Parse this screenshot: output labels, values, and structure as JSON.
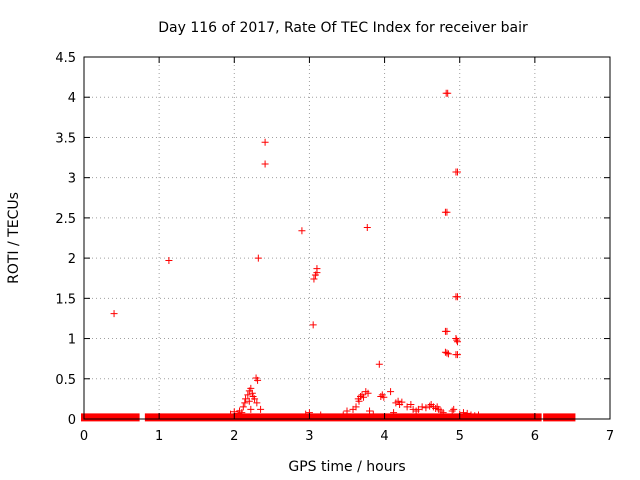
{
  "chart_data": {
    "type": "scatter",
    "title": "Day 116 of 2017, Rate Of TEC Index for receiver bair",
    "xlabel": "GPS time / hours",
    "ylabel": "ROTI / TECUs",
    "xlim": [
      0,
      7
    ],
    "ylim": [
      0,
      4.5
    ],
    "xticks": [
      0,
      1,
      2,
      3,
      4,
      5,
      6,
      7
    ],
    "yticks": [
      0,
      0.5,
      1,
      1.5,
      2,
      2.5,
      3,
      3.5,
      4,
      4.5
    ],
    "ytick_labels": [
      "0",
      "0.5",
      "1",
      "1.5",
      "2",
      "2.5",
      "3",
      "3.5",
      "4",
      "4.5"
    ],
    "grid": true,
    "marker": "plus",
    "color": "#ff0000",
    "baseline_segments": [
      {
        "x_start": 0.0,
        "x_end": 0.7,
        "y": 0.02
      },
      {
        "x_start": 0.85,
        "x_end": 6.05,
        "y": 0.02
      },
      {
        "x_start": 6.15,
        "x_end": 6.5,
        "y": 0.02
      }
    ],
    "points": [
      [
        0.4,
        1.31
      ],
      [
        1.13,
        1.97
      ],
      [
        2.41,
        3.44
      ],
      [
        2.41,
        3.17
      ],
      [
        2.32,
        2.0
      ],
      [
        2.9,
        2.34
      ],
      [
        3.77,
        2.38
      ],
      [
        3.1,
        1.87
      ],
      [
        3.1,
        1.82
      ],
      [
        3.08,
        1.79
      ],
      [
        3.06,
        1.74
      ],
      [
        3.05,
        1.17
      ],
      [
        3.93,
        0.68
      ],
      [
        4.08,
        0.34
      ],
      [
        4.82,
        4.05
      ],
      [
        4.84,
        4.05
      ],
      [
        4.95,
        3.07
      ],
      [
        4.97,
        3.07
      ],
      [
        4.81,
        2.57
      ],
      [
        4.83,
        2.57
      ],
      [
        4.95,
        1.52
      ],
      [
        4.97,
        1.52
      ],
      [
        4.81,
        1.09
      ],
      [
        4.83,
        1.09
      ],
      [
        4.95,
        1.0
      ],
      [
        4.96,
        0.98
      ],
      [
        4.97,
        0.96
      ],
      [
        4.81,
        0.83
      ],
      [
        4.83,
        0.82
      ],
      [
        4.85,
        0.81
      ],
      [
        4.95,
        0.8
      ],
      [
        4.97,
        0.8
      ],
      [
        2.29,
        0.51
      ],
      [
        2.31,
        0.48
      ],
      [
        2.2,
        0.35
      ],
      [
        2.22,
        0.38
      ],
      [
        2.24,
        0.32
      ],
      [
        2.18,
        0.3
      ],
      [
        2.25,
        0.28
      ],
      [
        2.15,
        0.25
      ],
      [
        2.27,
        0.25
      ],
      [
        2.2,
        0.22
      ],
      [
        2.14,
        0.2
      ],
      [
        2.3,
        0.2
      ],
      [
        2.12,
        0.15
      ],
      [
        2.22,
        0.12
      ],
      [
        2.07,
        0.1
      ],
      [
        2.1,
        0.08
      ],
      [
        2.35,
        0.12
      ],
      [
        1.95,
        0.06
      ],
      [
        2.0,
        0.09
      ],
      [
        2.05,
        0.07
      ],
      [
        2.95,
        0.06
      ],
      [
        3.0,
        0.08
      ],
      [
        3.15,
        0.05
      ],
      [
        3.45,
        0.05
      ],
      [
        3.5,
        0.1
      ],
      [
        3.58,
        0.12
      ],
      [
        3.62,
        0.15
      ],
      [
        3.65,
        0.25
      ],
      [
        3.68,
        0.28
      ],
      [
        3.7,
        0.3
      ],
      [
        3.72,
        0.27
      ],
      [
        3.66,
        0.22
      ],
      [
        3.75,
        0.34
      ],
      [
        3.78,
        0.32
      ],
      [
        3.8,
        0.1
      ],
      [
        3.85,
        0.06
      ],
      [
        3.95,
        0.28
      ],
      [
        3.97,
        0.3
      ],
      [
        3.99,
        0.27
      ],
      [
        4.15,
        0.2
      ],
      [
        4.18,
        0.22
      ],
      [
        4.2,
        0.18
      ],
      [
        4.23,
        0.21
      ],
      [
        4.12,
        0.08
      ],
      [
        4.3,
        0.15
      ],
      [
        4.35,
        0.18
      ],
      [
        4.38,
        0.12
      ],
      [
        4.42,
        0.1
      ],
      [
        4.45,
        0.12
      ],
      [
        4.5,
        0.15
      ],
      [
        4.55,
        0.14
      ],
      [
        4.6,
        0.16
      ],
      [
        4.62,
        0.18
      ],
      [
        4.65,
        0.15
      ],
      [
        4.68,
        0.13
      ],
      [
        4.7,
        0.15
      ],
      [
        4.72,
        0.12
      ],
      [
        4.75,
        0.1
      ],
      [
        4.78,
        0.08
      ],
      [
        4.9,
        0.1
      ],
      [
        4.92,
        0.12
      ],
      [
        5.0,
        0.06
      ],
      [
        5.05,
        0.08
      ],
      [
        5.1,
        0.07
      ],
      [
        5.15,
        0.05
      ],
      [
        5.2,
        0.04
      ],
      [
        5.25,
        0.05
      ]
    ]
  }
}
